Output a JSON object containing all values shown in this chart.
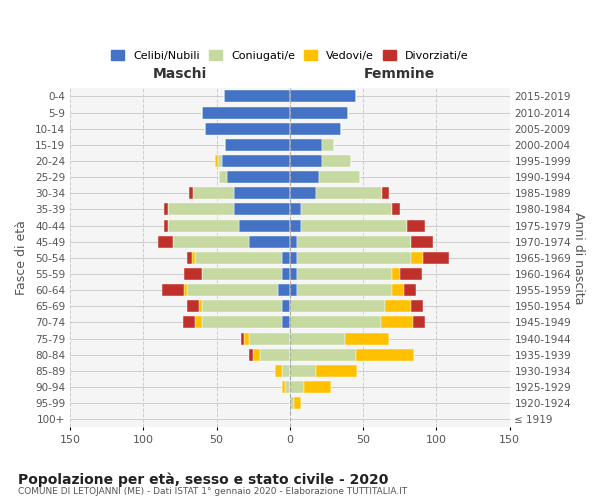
{
  "age_groups": [
    "100+",
    "95-99",
    "90-94",
    "85-89",
    "80-84",
    "75-79",
    "70-74",
    "65-69",
    "60-64",
    "55-59",
    "50-54",
    "45-49",
    "40-44",
    "35-39",
    "30-34",
    "25-29",
    "20-24",
    "15-19",
    "10-14",
    "5-9",
    "0-4"
  ],
  "birth_years": [
    "≤ 1919",
    "1920-1924",
    "1925-1929",
    "1930-1934",
    "1935-1939",
    "1940-1944",
    "1945-1949",
    "1950-1954",
    "1955-1959",
    "1960-1964",
    "1965-1969",
    "1970-1974",
    "1975-1979",
    "1980-1984",
    "1985-1989",
    "1990-1994",
    "1995-1999",
    "2000-2004",
    "2005-2009",
    "2010-2014",
    "2015-2019"
  ],
  "maschi": {
    "celibi": [
      0,
      0,
      0,
      0,
      0,
      0,
      5,
      5,
      8,
      5,
      5,
      28,
      35,
      38,
      38,
      43,
      46,
      44,
      58,
      60,
      45
    ],
    "coniugati": [
      0,
      0,
      3,
      5,
      20,
      28,
      55,
      55,
      62,
      55,
      60,
      52,
      48,
      45,
      28,
      5,
      3,
      0,
      0,
      0,
      0
    ],
    "vedovi": [
      0,
      0,
      2,
      5,
      5,
      3,
      5,
      2,
      2,
      0,
      2,
      0,
      0,
      0,
      0,
      0,
      2,
      0,
      0,
      0,
      0
    ],
    "divorziati": [
      0,
      0,
      0,
      0,
      3,
      2,
      8,
      8,
      15,
      12,
      3,
      10,
      3,
      3,
      3,
      0,
      0,
      0,
      0,
      0,
      0
    ]
  },
  "femmine": {
    "nubili": [
      0,
      0,
      0,
      0,
      0,
      0,
      0,
      0,
      5,
      5,
      5,
      5,
      8,
      8,
      18,
      20,
      22,
      22,
      35,
      40,
      45
    ],
    "coniugate": [
      0,
      3,
      10,
      18,
      45,
      38,
      62,
      65,
      65,
      65,
      78,
      78,
      72,
      62,
      45,
      28,
      20,
      8,
      0,
      0,
      0
    ],
    "vedove": [
      0,
      5,
      18,
      28,
      40,
      30,
      22,
      18,
      8,
      5,
      8,
      0,
      0,
      0,
      0,
      0,
      0,
      0,
      0,
      0,
      0
    ],
    "divorziate": [
      0,
      0,
      0,
      0,
      0,
      0,
      8,
      8,
      8,
      15,
      18,
      15,
      12,
      5,
      5,
      0,
      0,
      0,
      0,
      0,
      0
    ]
  },
  "colors": {
    "celibi": "#4472c4",
    "coniugati": "#c5d9a0",
    "vedovi": "#ffc000",
    "divorziati": "#c0312b"
  },
  "xlim": 150,
  "title": "Popolazione per età, sesso e stato civile - 2020",
  "subtitle": "COMUNE DI LETOJANNI (ME) - Dati ISTAT 1° gennaio 2020 - Elaborazione TUTTITALIA.IT",
  "ylabel_left": "Fasce di età",
  "ylabel_right": "Anni di nascita",
  "xlabel_left": "Maschi",
  "xlabel_right": "Femmine",
  "bg_color": "#f5f5f5",
  "grid_color": "#cccccc"
}
